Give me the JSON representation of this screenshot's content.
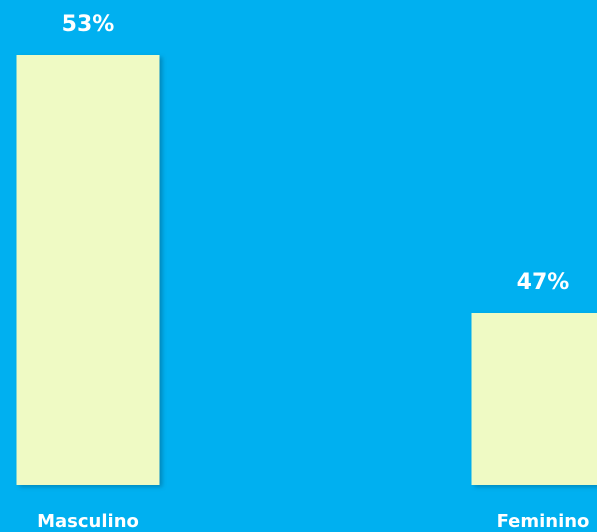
{
  "chart_data": {
    "type": "bar",
    "categories": [
      "Masculino",
      "Feminino"
    ],
    "values": [
      53,
      47
    ],
    "value_labels": [
      "53%",
      "47%"
    ],
    "color": "#effac4",
    "ylim": [
      43,
      54
    ]
  }
}
